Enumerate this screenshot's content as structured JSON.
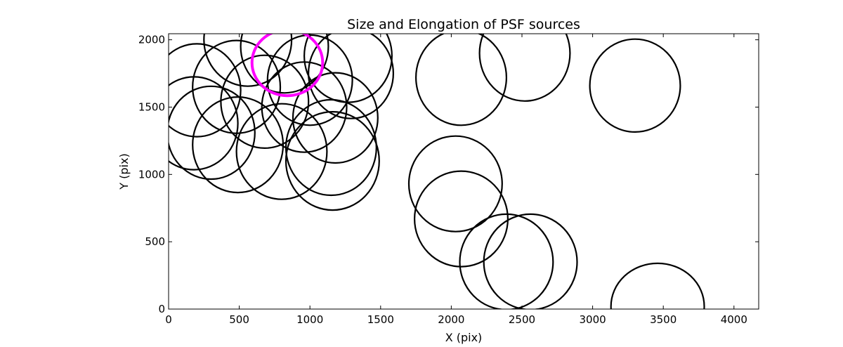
{
  "chart_data": {
    "type": "scatter",
    "title": "Size and Elongation of PSF sources",
    "xlabel": "X (pix)",
    "ylabel": "Y (pix)",
    "xlim": [
      0,
      4175
    ],
    "ylim": [
      0,
      2045
    ],
    "xticks": [
      0,
      500,
      1000,
      1500,
      2000,
      2500,
      3000,
      3500,
      4000
    ],
    "yticks": [
      0,
      500,
      1000,
      1500,
      2000
    ],
    "grid": false,
    "marker": "ellipse",
    "colors": {
      "default": "#000000",
      "highlight": "#ff00ff"
    },
    "series": [
      {
        "points": [
          {
            "x": 200,
            "y": 1625,
            "rx": 310,
            "ry": 345
          },
          {
            "x": 480,
            "y": 1650,
            "rx": 310,
            "ry": 345
          },
          {
            "x": 180,
            "y": 1380,
            "rx": 310,
            "ry": 345
          },
          {
            "x": 300,
            "y": 1310,
            "rx": 310,
            "ry": 345
          },
          {
            "x": 490,
            "y": 1220,
            "rx": 320,
            "ry": 355
          },
          {
            "x": 680,
            "y": 1540,
            "rx": 310,
            "ry": 345
          },
          {
            "x": 800,
            "y": 1170,
            "rx": 320,
            "ry": 355
          },
          {
            "x": 960,
            "y": 1500,
            "rx": 300,
            "ry": 335
          },
          {
            "x": 1180,
            "y": 1420,
            "rx": 300,
            "ry": 335
          },
          {
            "x": 1150,
            "y": 1200,
            "rx": 320,
            "ry": 355
          },
          {
            "x": 1160,
            "y": 1100,
            "rx": 330,
            "ry": 365
          },
          {
            "x": 1000,
            "y": 1700,
            "rx": 300,
            "ry": 335
          },
          {
            "x": 1290,
            "y": 1750,
            "rx": 300,
            "ry": 335
          },
          {
            "x": 1270,
            "y": 1880,
            "rx": 310,
            "ry": 345
          },
          {
            "x": 820,
            "y": 1950,
            "rx": 310,
            "ry": 345
          },
          {
            "x": 560,
            "y": 2000,
            "rx": 310,
            "ry": 345
          },
          {
            "x": 2070,
            "y": 1720,
            "rx": 320,
            "ry": 355
          },
          {
            "x": 2520,
            "y": 1900,
            "rx": 320,
            "ry": 355
          },
          {
            "x": 3300,
            "y": 1660,
            "rx": 320,
            "ry": 345
          },
          {
            "x": 2030,
            "y": 930,
            "rx": 330,
            "ry": 355
          },
          {
            "x": 2070,
            "y": 670,
            "rx": 330,
            "ry": 355
          },
          {
            "x": 2390,
            "y": 350,
            "rx": 330,
            "ry": 355
          },
          {
            "x": 2560,
            "y": 350,
            "rx": 330,
            "ry": 355
          },
          {
            "x": 3460,
            "y": 20,
            "rx": 330,
            "ry": 320
          }
        ]
      },
      {
        "highlight": true,
        "points": [
          {
            "x": 840,
            "y": 1830,
            "rx": 250,
            "ry": 245
          }
        ]
      }
    ]
  }
}
